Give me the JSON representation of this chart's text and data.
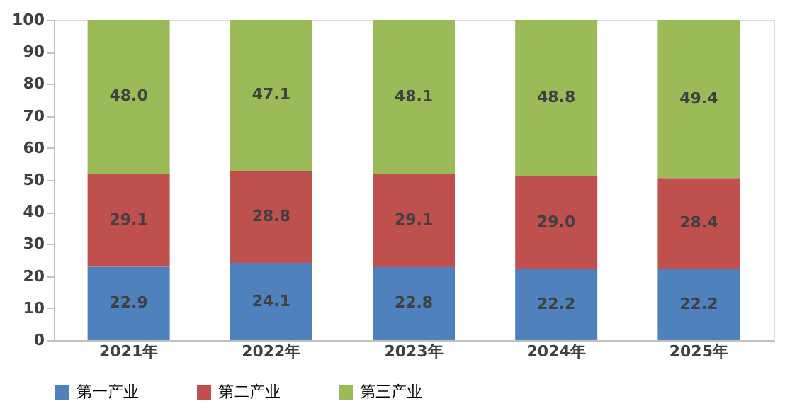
{
  "chart_data": {
    "type": "bar",
    "stacked": true,
    "categories": [
      "2021年",
      "2022年",
      "2023年",
      "2024年",
      "2025年"
    ],
    "series": [
      {
        "name": "第一产业",
        "color": "#4f81bd",
        "values": [
          22.9,
          24.1,
          22.8,
          22.2,
          22.2
        ],
        "value_labels": [
          "22.9",
          "24.1",
          "22.8",
          "22.2",
          "22.2"
        ]
      },
      {
        "name": "第二产业",
        "color": "#c0504d",
        "values": [
          29.1,
          28.8,
          29.1,
          29.0,
          28.4
        ],
        "value_labels": [
          "29.1",
          "28.8",
          "29.1",
          "29.0",
          "28.4"
        ]
      },
      {
        "name": "第三产业",
        "color": "#9bbb59",
        "values": [
          48.0,
          47.1,
          48.1,
          48.8,
          49.4
        ],
        "value_labels": [
          "48.0",
          "47.1",
          "48.1",
          "48.8",
          "49.4"
        ]
      }
    ],
    "ylim": [
      0,
      100
    ],
    "yticks": [
      0,
      10,
      20,
      30,
      40,
      50,
      60,
      70,
      80,
      90,
      100
    ],
    "grid": false,
    "legend": "bottom"
  }
}
